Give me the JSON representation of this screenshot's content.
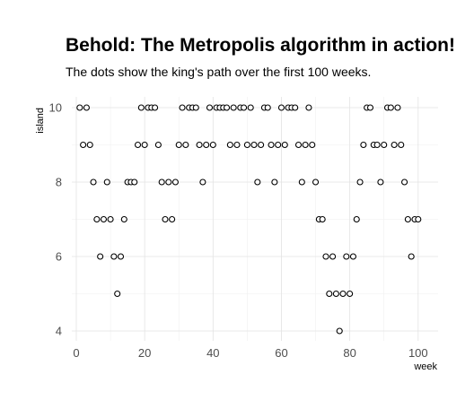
{
  "chart_data": {
    "type": "scatter",
    "title": "Behold: The Metropolis algorithm in action!",
    "subtitle": "The dots show the king's path over the first 100 weeks.",
    "xlabel": "week",
    "ylabel": "island",
    "xlim": [
      1,
      100
    ],
    "ylim": [
      4,
      10
    ],
    "x_ticks": [
      0,
      20,
      40,
      60,
      80,
      100
    ],
    "y_ticks": [
      4,
      6,
      8,
      10
    ],
    "grid": true,
    "legend": "none",
    "point_color": "#000000",
    "x": [
      1,
      2,
      3,
      4,
      5,
      6,
      7,
      8,
      9,
      10,
      11,
      12,
      13,
      14,
      15,
      16,
      17,
      18,
      19,
      20,
      21,
      22,
      23,
      24,
      25,
      26,
      27,
      28,
      29,
      30,
      31,
      32,
      33,
      34,
      35,
      36,
      37,
      38,
      39,
      40,
      41,
      42,
      43,
      44,
      45,
      46,
      47,
      48,
      49,
      50,
      51,
      52,
      53,
      54,
      55,
      56,
      57,
      58,
      59,
      60,
      61,
      62,
      63,
      64,
      65,
      66,
      67,
      68,
      69,
      70,
      71,
      72,
      73,
      74,
      75,
      76,
      77,
      78,
      79,
      80,
      81,
      82,
      83,
      84,
      85,
      86,
      87,
      88,
      89,
      90,
      91,
      92,
      93,
      94,
      95,
      96,
      97,
      98,
      99,
      100
    ],
    "y": [
      10,
      9,
      10,
      9,
      8,
      7,
      6,
      7,
      8,
      7,
      6,
      5,
      6,
      7,
      8,
      8,
      8,
      9,
      10,
      9,
      10,
      10,
      10,
      9,
      8,
      7,
      8,
      7,
      8,
      9,
      10,
      9,
      10,
      10,
      10,
      9,
      8,
      9,
      10,
      9,
      10,
      10,
      10,
      10,
      9,
      10,
      9,
      10,
      10,
      9,
      10,
      9,
      8,
      9,
      10,
      10,
      9,
      8,
      9,
      10,
      9,
      10,
      10,
      10,
      9,
      8,
      9,
      10,
      9,
      8,
      7,
      7,
      6,
      5,
      6,
      5,
      4,
      5,
      6,
      5,
      6,
      7,
      8,
      9,
      10,
      10,
      9,
      9,
      8,
      9,
      10,
      10,
      9,
      10,
      9,
      8,
      7,
      6,
      7,
      7
    ]
  }
}
